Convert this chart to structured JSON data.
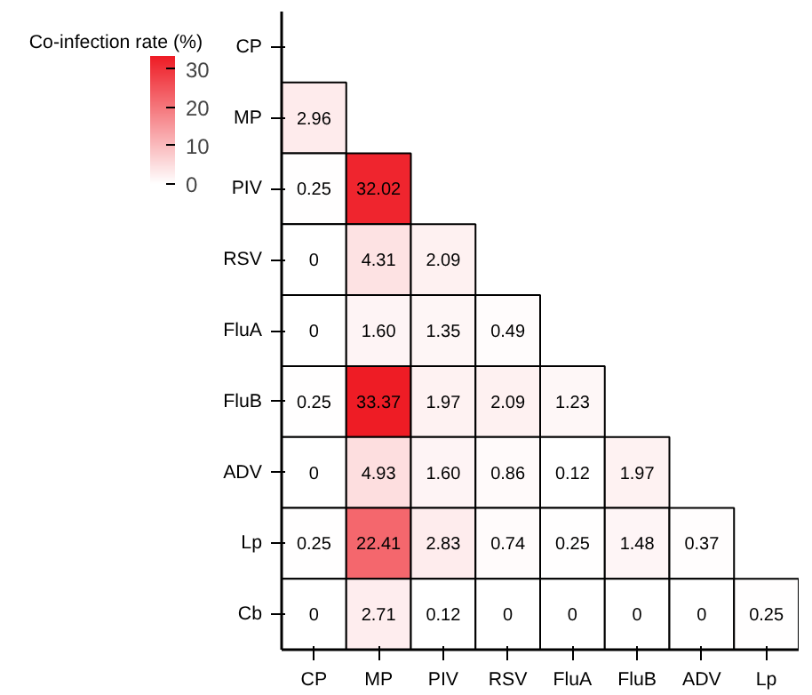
{
  "chart_data": {
    "type": "heatmap",
    "clabel": "Co-infection rate (%)",
    "categories": [
      "CP",
      "MP",
      "PIV",
      "RSV",
      "FluA",
      "FluB",
      "ADV",
      "Lp"
    ],
    "y_categories": [
      "CP",
      "MP",
      "PIV",
      "RSV",
      "FluA",
      "FluB",
      "ADV",
      "Lp",
      "Cb"
    ],
    "cells": [
      [
        null,
        null,
        null,
        null,
        null,
        null,
        null,
        null
      ],
      [
        2.96,
        null,
        null,
        null,
        null,
        null,
        null,
        null
      ],
      [
        0.25,
        32.02,
        null,
        null,
        null,
        null,
        null,
        null
      ],
      [
        0,
        4.31,
        2.09,
        null,
        null,
        null,
        null,
        null
      ],
      [
        0,
        1.6,
        1.35,
        0.49,
        null,
        null,
        null,
        null
      ],
      [
        0.25,
        33.37,
        1.97,
        2.09,
        1.23,
        null,
        null,
        null
      ],
      [
        0,
        4.93,
        1.6,
        0.86,
        0.12,
        1.97,
        null,
        null
      ],
      [
        0.25,
        22.41,
        2.83,
        0.74,
        0.25,
        1.48,
        0.37,
        null
      ],
      [
        0,
        2.71,
        0.12,
        0,
        0,
        0,
        0,
        0.25
      ]
    ],
    "cell_labels": [
      [
        null,
        null,
        null,
        null,
        null,
        null,
        null,
        null
      ],
      [
        "2.96",
        null,
        null,
        null,
        null,
        null,
        null,
        null
      ],
      [
        "0.25",
        "32.02",
        null,
        null,
        null,
        null,
        null,
        null
      ],
      [
        "0",
        "4.31",
        "2.09",
        null,
        null,
        null,
        null,
        null
      ],
      [
        "0",
        "1.60",
        "1.35",
        "0.49",
        null,
        null,
        null,
        null
      ],
      [
        "0.25",
        "33.37",
        "1.97",
        "2.09",
        "1.23",
        null,
        null,
        null
      ],
      [
        "0",
        "4.93",
        "1.60",
        "0.86",
        "0.12",
        "1.97",
        null,
        null
      ],
      [
        "0.25",
        "22.41",
        "2.83",
        "0.74",
        "0.25",
        "1.48",
        "0.37",
        null
      ],
      [
        "0",
        "2.71",
        "0.12",
        "0",
        "0",
        "0",
        "0",
        "0.25"
      ]
    ],
    "clim": [
      0,
      33.37
    ],
    "cticks": [
      0,
      10,
      20,
      30
    ]
  }
}
